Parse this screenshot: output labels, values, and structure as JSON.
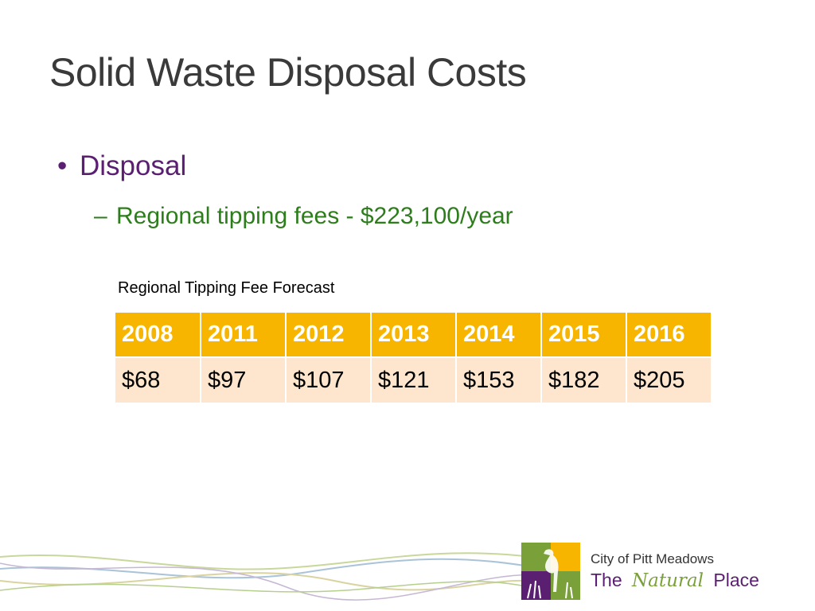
{
  "title": "Solid Waste Disposal Costs",
  "bullets": {
    "level1": {
      "marker": "•",
      "text": "Disposal",
      "color": "#5b1f72"
    },
    "level2": {
      "marker": "–",
      "text": "Regional tipping fees - $223,100/year",
      "color": "#2e7d1c"
    }
  },
  "table": {
    "caption": "Regional Tipping Fee Forecast",
    "header_color": "#f7b500",
    "row_color": "#fde6cd",
    "years": [
      "2008",
      "2011",
      "2012",
      "2013",
      "2014",
      "2015",
      "2016"
    ],
    "fees": [
      "$68",
      "$97",
      "$107",
      "$121",
      "$153",
      "$182",
      "$205"
    ]
  },
  "logo": {
    "name": "City of Pitt Meadows",
    "tagline_prefix": "The",
    "tagline_accent": "Natural",
    "tagline_suffix": "Place",
    "icon": "heron-in-reeds-icon",
    "colors": [
      "#7aa03a",
      "#f7b500",
      "#5b1f72"
    ]
  }
}
